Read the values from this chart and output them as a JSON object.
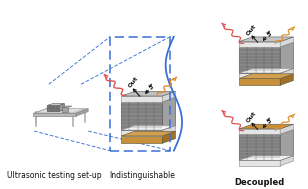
{
  "background_color": "#ffffff",
  "fig_width": 3.08,
  "fig_height": 1.89,
  "dpi": 100,
  "label_ultrasonic": "Ultrasonic testing set-up",
  "label_indistinguishable": "Indistinguishable",
  "label_decoupled": "Decoupled",
  "label_out": "Out",
  "label_in": "In",
  "label_fontsize": 5.5,
  "small_fontsize": 4.5,
  "dashed_box_color": "#3a6fd8",
  "brace_color": "#3a6fd8",
  "wave_color_red": "#e05050",
  "wave_color_orange": "#e09030",
  "battery_top_gray": "#c8c8c8",
  "battery_front_gray": "#909090",
  "battery_side_gray": "#a0a0a0",
  "battery_white_layer": "#e8e8e8",
  "battery_tan": "#c8903a",
  "battery_dark_front": "#707070",
  "arrow_color": "#222222"
}
